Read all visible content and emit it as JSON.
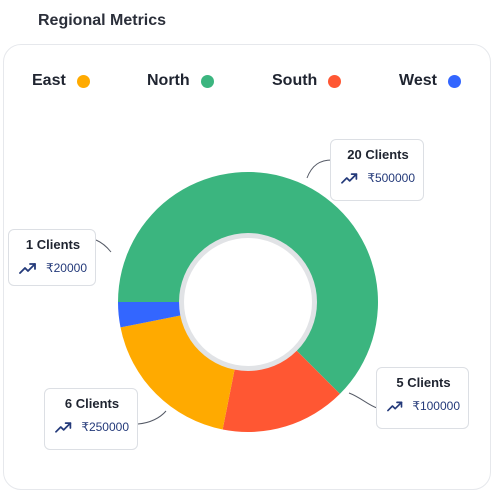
{
  "header": {
    "title": "Regional Metrics"
  },
  "legend": [
    {
      "label": "East",
      "color": "#FFAA00"
    },
    {
      "label": "North",
      "color": "#3BB57F"
    },
    {
      "label": "South",
      "color": "#FF5733"
    },
    {
      "label": "West",
      "color": "#3366FF"
    }
  ],
  "chart_data": {
    "type": "pie",
    "donut": true,
    "legend_position": "top",
    "categories": [
      "North",
      "South",
      "East",
      "West"
    ],
    "values": [
      20,
      5,
      6,
      1
    ],
    "unit": "Clients",
    "colors": [
      "#3BB57F",
      "#FF5733",
      "#FFAA00",
      "#3366FF"
    ],
    "annotations": [
      {
        "region": "North",
        "clients": "20 Clients",
        "amount": "₹500000"
      },
      {
        "region": "South",
        "clients": "5 Clients",
        "amount": "₹100000"
      },
      {
        "region": "East",
        "clients": "6 Clients",
        "amount": "₹250000"
      },
      {
        "region": "West",
        "clients": "1 Clients",
        "amount": "₹20000"
      }
    ]
  }
}
